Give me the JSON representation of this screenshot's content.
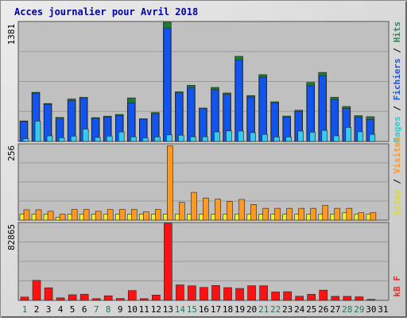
{
  "title": "Acces journalier pour Avril 2018",
  "colors": {
    "title": "#0000aa",
    "plot_bg": "#c0c0c0",
    "frame_bg": "#dcdcdc",
    "grid": "#9a9a9a",
    "pages": "#33ccee",
    "fichiers": "#1155ee",
    "hits": "#227733",
    "sites": "#eeee33",
    "visites": "#ff9922",
    "kb": "#ff1111",
    "weekend_label": "#227755",
    "weekday_label": "#000000",
    "legend_pages": "#33cccc",
    "legend_fichiers": "#2255dd",
    "legend_hits": "#338855",
    "legend_sites": "#dddd22",
    "legend_visites": "#ff9922",
    "legend_kb": "#ff2222"
  },
  "days": [
    "1",
    "2",
    "3",
    "4",
    "5",
    "6",
    "7",
    "8",
    "9",
    "10",
    "11",
    "12",
    "13",
    "14",
    "15",
    "16",
    "17",
    "18",
    "19",
    "20",
    "21",
    "22",
    "23",
    "24",
    "25",
    "26",
    "27",
    "28",
    "29",
    "30",
    "31"
  ],
  "weekend_days": [
    "1",
    "7",
    "8",
    "14",
    "15",
    "21",
    "22",
    "28",
    "29"
  ],
  "chart_data": [
    {
      "type": "bar",
      "ymax_label": "1381",
      "ylim": [
        0,
        1381
      ],
      "legend": [
        "Pages",
        "Fichiers",
        "Hits"
      ],
      "series": [
        {
          "name": "Pages",
          "values": [
            32,
            235,
            65,
            43,
            61,
            143,
            47,
            62,
            109,
            53,
            39,
            52,
            76,
            72,
            54,
            54,
            110,
            122,
            120,
            102,
            82,
            52,
            52,
            120,
            107,
            128,
            65,
            162,
            112,
            82,
            0
          ]
        },
        {
          "name": "Fichiers",
          "values": [
            231,
            558,
            431,
            268,
            473,
            506,
            268,
            284,
            301,
            444,
            258,
            322,
            1311,
            565,
            624,
            383,
            600,
            545,
            941,
            515,
            745,
            447,
            281,
            347,
            645,
            762,
            482,
            381,
            280,
            254,
            0
          ]
        },
        {
          "name": "Hits",
          "values": [
            238,
            570,
            440,
            278,
            492,
            511,
            276,
            293,
            313,
            505,
            263,
            335,
            1381,
            575,
            651,
            387,
            626,
            562,
            986,
            532,
            774,
            460,
            294,
            362,
            684,
            800,
            512,
            405,
            299,
            287,
            0
          ]
        }
      ]
    },
    {
      "type": "bar",
      "ymax_label": "256",
      "ylim": [
        0,
        256
      ],
      "legend": [
        "Sites",
        "Visites"
      ],
      "series": [
        {
          "name": "Sites",
          "values": [
            20,
            20,
            20,
            10,
            20,
            20,
            20,
            20,
            20,
            20,
            20,
            20,
            20,
            20,
            20,
            20,
            20,
            20,
            20,
            20,
            20,
            20,
            20,
            20,
            20,
            20,
            20,
            25,
            20,
            20,
            0
          ]
        },
        {
          "name": "Visites",
          "values": [
            35,
            35,
            30,
            20,
            36,
            36,
            30,
            36,
            36,
            36,
            28,
            36,
            252,
            60,
            94,
            75,
            71,
            63,
            70,
            53,
            40,
            40,
            40,
            40,
            40,
            50,
            40,
            40,
            25,
            25,
            0
          ]
        }
      ]
    },
    {
      "type": "bar",
      "ymax_label": "82865",
      "ylim": [
        0,
        82865
      ],
      "legend": [
        "kB F"
      ],
      "series": [
        {
          "name": "kB F",
          "values": [
            3500,
            21500,
            13500,
            2700,
            6000,
            6600,
            1800,
            4900,
            2000,
            10500,
            1800,
            5700,
            82865,
            16600,
            15600,
            13900,
            16000,
            13700,
            12800,
            15700,
            15700,
            9000,
            9300,
            4400,
            6500,
            11000,
            4300,
            4300,
            3800,
            1100,
            0
          ]
        }
      ]
    }
  ]
}
